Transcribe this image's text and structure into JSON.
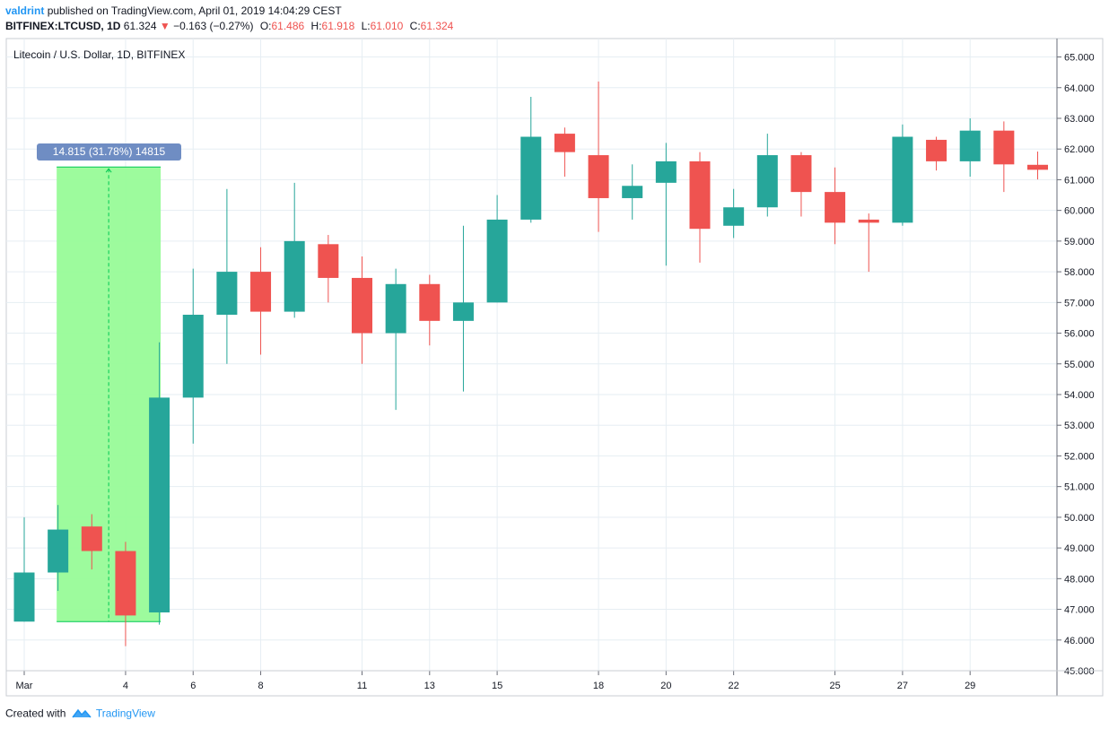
{
  "header": {
    "author": "valdrint",
    "published_text": "published on TradingView.com, April 01, 2019 14:04:29 CEST",
    "symbol": "BITFINEX:LTCUSD, 1D",
    "last_price": "61.324",
    "change_arrow": "▼",
    "change": "−0.163 (−0.27%)",
    "open_label": "O:",
    "open": "61.486",
    "high_label": "H:",
    "high": "61.918",
    "low_label": "L:",
    "low": "61.010",
    "close_label": "C:",
    "close": "61.324"
  },
  "colors": {
    "up": "#26a69a",
    "down": "#ef5350",
    "measure_fill": "#98fb98",
    "measure_line": "#00c853",
    "grid": "#e6eef3"
  },
  "measure": {
    "label": "14.815 (31.78%) 14815"
  },
  "footer": {
    "created_with": "Created with",
    "brand": "TradingView"
  },
  "chart_data": {
    "type": "candlestick",
    "title": "Litecoin / U.S. Dollar, 1D, BITFINEX",
    "ylim": [
      45,
      65.6
    ],
    "y_ticks": [
      "45.000",
      "46.000",
      "47.000",
      "48.000",
      "49.000",
      "50.000",
      "51.000",
      "52.000",
      "53.000",
      "54.000",
      "55.000",
      "56.000",
      "57.000",
      "58.000",
      "59.000",
      "60.000",
      "61.000",
      "62.000",
      "63.000",
      "64.000",
      "65.000"
    ],
    "x_ticks": [
      {
        "day": 1,
        "label": "Mar"
      },
      {
        "day": 4,
        "label": "4"
      },
      {
        "day": 6,
        "label": "6"
      },
      {
        "day": 8,
        "label": "8"
      },
      {
        "day": 11,
        "label": "11"
      },
      {
        "day": 13,
        "label": "13"
      },
      {
        "day": 15,
        "label": "15"
      },
      {
        "day": 18,
        "label": "18"
      },
      {
        "day": 20,
        "label": "20"
      },
      {
        "day": 22,
        "label": "22"
      },
      {
        "day": 25,
        "label": "25"
      },
      {
        "day": 27,
        "label": "27"
      },
      {
        "day": 29,
        "label": "29"
      }
    ],
    "candles": [
      {
        "day": 1,
        "o": 46.6,
        "h": 50.0,
        "l": 46.6,
        "c": 48.2
      },
      {
        "day": 2,
        "o": 48.2,
        "h": 50.4,
        "l": 47.6,
        "c": 49.6
      },
      {
        "day": 3,
        "o": 49.7,
        "h": 50.1,
        "l": 48.3,
        "c": 48.9
      },
      {
        "day": 4,
        "o": 48.9,
        "h": 49.2,
        "l": 45.8,
        "c": 46.8
      },
      {
        "day": 5,
        "o": 46.9,
        "h": 55.7,
        "l": 46.5,
        "c": 53.9
      },
      {
        "day": 6,
        "o": 53.9,
        "h": 58.1,
        "l": 52.4,
        "c": 56.6
      },
      {
        "day": 7,
        "o": 56.6,
        "h": 60.7,
        "l": 55.0,
        "c": 58.0
      },
      {
        "day": 8,
        "o": 58.0,
        "h": 58.8,
        "l": 55.3,
        "c": 56.7
      },
      {
        "day": 9,
        "o": 56.7,
        "h": 60.9,
        "l": 56.5,
        "c": 59.0
      },
      {
        "day": 10,
        "o": 58.9,
        "h": 59.2,
        "l": 57.0,
        "c": 57.8
      },
      {
        "day": 11,
        "o": 57.8,
        "h": 58.5,
        "l": 55.0,
        "c": 56.0
      },
      {
        "day": 12,
        "o": 56.0,
        "h": 58.1,
        "l": 53.5,
        "c": 57.6
      },
      {
        "day": 13,
        "o": 57.6,
        "h": 57.9,
        "l": 55.6,
        "c": 56.4
      },
      {
        "day": 14,
        "o": 56.4,
        "h": 59.5,
        "l": 54.1,
        "c": 57.0
      },
      {
        "day": 15,
        "o": 57.0,
        "h": 60.5,
        "l": 57.0,
        "c": 59.7
      },
      {
        "day": 16,
        "o": 59.7,
        "h": 63.7,
        "l": 59.6,
        "c": 62.4
      },
      {
        "day": 17,
        "o": 62.5,
        "h": 62.7,
        "l": 61.1,
        "c": 61.9
      },
      {
        "day": 18,
        "o": 61.8,
        "h": 64.2,
        "l": 59.3,
        "c": 60.4
      },
      {
        "day": 19,
        "o": 60.4,
        "h": 61.5,
        "l": 59.7,
        "c": 60.8
      },
      {
        "day": 20,
        "o": 60.9,
        "h": 62.2,
        "l": 58.2,
        "c": 61.6
      },
      {
        "day": 21,
        "o": 61.6,
        "h": 61.9,
        "l": 58.3,
        "c": 59.4
      },
      {
        "day": 22,
        "o": 59.5,
        "h": 60.7,
        "l": 59.1,
        "c": 60.1
      },
      {
        "day": 23,
        "o": 60.1,
        "h": 62.5,
        "l": 59.8,
        "c": 61.8
      },
      {
        "day": 24,
        "o": 61.8,
        "h": 61.9,
        "l": 59.8,
        "c": 60.6
      },
      {
        "day": 25,
        "o": 60.6,
        "h": 61.4,
        "l": 58.9,
        "c": 59.6
      },
      {
        "day": 26,
        "o": 59.7,
        "h": 59.9,
        "l": 58.0,
        "c": 59.6
      },
      {
        "day": 27,
        "o": 59.6,
        "h": 62.8,
        "l": 59.5,
        "c": 62.4
      },
      {
        "day": 28,
        "o": 62.3,
        "h": 62.4,
        "l": 61.3,
        "c": 61.6
      },
      {
        "day": 29,
        "o": 61.6,
        "h": 63.0,
        "l": 61.1,
        "c": 62.6
      },
      {
        "day": 30,
        "o": 62.6,
        "h": 62.9,
        "l": 60.6,
        "c": 61.5
      },
      {
        "day": 31,
        "o": 61.486,
        "h": 61.918,
        "l": 61.01,
        "c": 61.324
      }
    ],
    "measure_range": {
      "start_day": 2,
      "end_day": 5,
      "low": 46.6,
      "high": 61.415
    }
  }
}
